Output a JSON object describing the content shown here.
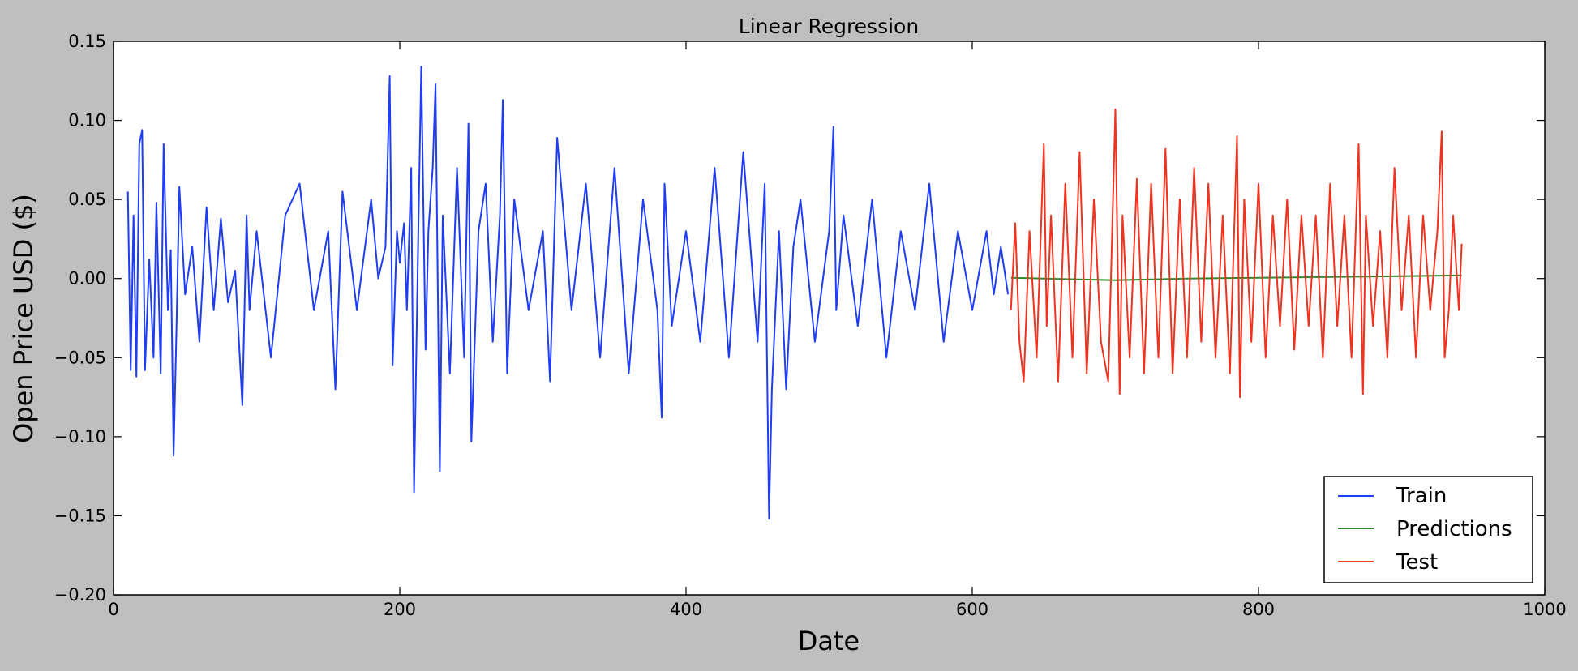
{
  "chart_data": {
    "type": "line",
    "title": "Linear Regression",
    "xlabel": "Date",
    "ylabel": "Open Price USD ($)",
    "xlim": [
      0,
      1000
    ],
    "ylim": [
      -0.2,
      0.15
    ],
    "x_ticks": [
      0,
      200,
      400,
      600,
      800,
      1000
    ],
    "x_tick_labels": [
      "0",
      "200",
      "400",
      "600",
      "800",
      "1000"
    ],
    "y_ticks": [
      -0.2,
      -0.15,
      -0.1,
      -0.05,
      0.0,
      0.05,
      0.1,
      0.15
    ],
    "y_tick_labels": [
      "−0.20",
      "−0.15",
      "−0.10",
      "−0.05",
      "0.00",
      "0.05",
      "0.10",
      "0.15"
    ],
    "grid": false,
    "legend_position": "lower-right",
    "series": [
      {
        "name": "Train",
        "color": "#1f3df5",
        "x": [
          10,
          12,
          14,
          16,
          18,
          20,
          22,
          25,
          28,
          30,
          33,
          35,
          38,
          40,
          42,
          44,
          46,
          50,
          55,
          60,
          65,
          70,
          75,
          80,
          85,
          90,
          93,
          95,
          100,
          110,
          120,
          130,
          140,
          150,
          155,
          160,
          170,
          180,
          185,
          190,
          193,
          195,
          198,
          200,
          203,
          205,
          208,
          210,
          213,
          215,
          218,
          220,
          223,
          225,
          228,
          230,
          235,
          240,
          245,
          248,
          250,
          255,
          260,
          265,
          270,
          272,
          275,
          280,
          290,
          300,
          305,
          310,
          320,
          330,
          340,
          350,
          360,
          370,
          380,
          383,
          385,
          390,
          400,
          410,
          420,
          430,
          440,
          450,
          455,
          458,
          460,
          465,
          470,
          475,
          480,
          490,
          500,
          503,
          505,
          510,
          520,
          530,
          540,
          550,
          560,
          570,
          580,
          590,
          600,
          610,
          615,
          620,
          625
        ],
        "y": [
          0.055,
          -0.058,
          0.04,
          -0.062,
          0.085,
          0.094,
          -0.058,
          0.012,
          -0.05,
          0.048,
          -0.06,
          0.085,
          -0.02,
          0.018,
          -0.112,
          -0.03,
          0.058,
          -0.01,
          0.02,
          -0.04,
          0.045,
          -0.02,
          0.038,
          -0.015,
          0.005,
          -0.08,
          0.04,
          -0.02,
          0.03,
          -0.05,
          0.04,
          0.06,
          -0.02,
          0.03,
          -0.07,
          0.055,
          -0.02,
          0.05,
          0.0,
          0.02,
          0.128,
          -0.055,
          0.03,
          0.01,
          0.035,
          -0.02,
          0.07,
          -0.135,
          0.03,
          0.134,
          -0.045,
          0.03,
          0.07,
          0.123,
          -0.122,
          0.04,
          -0.06,
          0.07,
          -0.05,
          0.098,
          -0.103,
          0.03,
          0.06,
          -0.04,
          0.04,
          0.113,
          -0.06,
          0.05,
          -0.02,
          0.03,
          -0.065,
          0.089,
          -0.02,
          0.06,
          -0.05,
          0.07,
          -0.06,
          0.05,
          -0.02,
          -0.088,
          0.06,
          -0.03,
          0.03,
          -0.04,
          0.07,
          -0.05,
          0.08,
          -0.04,
          0.06,
          -0.152,
          -0.07,
          0.03,
          -0.07,
          0.02,
          0.05,
          -0.04,
          0.03,
          0.096,
          -0.02,
          0.04,
          -0.03,
          0.05,
          -0.05,
          0.03,
          -0.02,
          0.06,
          -0.04,
          0.03,
          -0.02,
          0.03,
          -0.01,
          0.02,
          -0.01
        ]
      },
      {
        "name": "Predictions",
        "color": "#2e8b2e",
        "x": [
          627,
          650,
          700,
          750,
          800,
          850,
          900,
          942
        ],
        "y": [
          0.0005,
          0.0,
          -0.001,
          0.0,
          0.0005,
          0.001,
          0.0015,
          0.002
        ]
      },
      {
        "name": "Test",
        "color": "#f0321e",
        "x": [
          627,
          630,
          633,
          636,
          640,
          645,
          650,
          652,
          655,
          660,
          665,
          670,
          675,
          680,
          685,
          690,
          695,
          700,
          703,
          705,
          710,
          715,
          720,
          725,
          730,
          735,
          740,
          745,
          750,
          755,
          760,
          765,
          770,
          775,
          780,
          785,
          787,
          790,
          795,
          800,
          805,
          810,
          815,
          820,
          825,
          830,
          835,
          840,
          845,
          850,
          855,
          860,
          865,
          870,
          873,
          875,
          880,
          885,
          890,
          895,
          900,
          905,
          910,
          915,
          920,
          925,
          928,
          930,
          933,
          936,
          940,
          942
        ],
        "y": [
          -0.02,
          0.035,
          -0.04,
          -0.065,
          0.03,
          -0.05,
          0.085,
          -0.03,
          0.04,
          -0.065,
          0.06,
          -0.05,
          0.08,
          -0.06,
          0.05,
          -0.04,
          -0.065,
          0.107,
          -0.073,
          0.04,
          -0.05,
          0.063,
          -0.06,
          0.06,
          -0.05,
          0.082,
          -0.06,
          0.05,
          -0.05,
          0.07,
          -0.04,
          0.06,
          -0.05,
          0.04,
          -0.06,
          0.09,
          -0.075,
          0.05,
          -0.04,
          0.06,
          -0.05,
          0.04,
          -0.03,
          0.05,
          -0.045,
          0.04,
          -0.03,
          0.04,
          -0.05,
          0.06,
          -0.03,
          0.04,
          -0.05,
          0.085,
          -0.073,
          0.04,
          -0.03,
          0.03,
          -0.05,
          0.07,
          -0.02,
          0.04,
          -0.05,
          0.04,
          -0.02,
          0.03,
          0.093,
          -0.05,
          -0.02,
          0.04,
          -0.02,
          0.022
        ]
      }
    ]
  }
}
